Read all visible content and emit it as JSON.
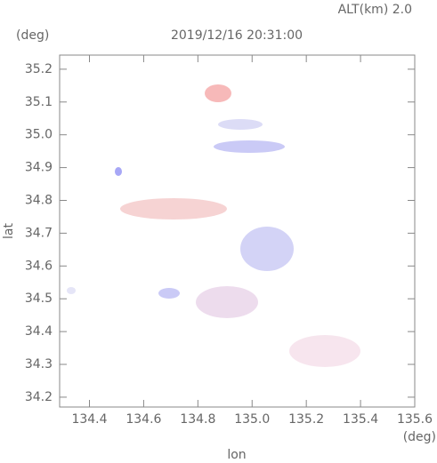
{
  "chart_data": {
    "type": "map",
    "title": "2019/12/16 20:31:00",
    "subtitle": "ALT(km) 2.0",
    "y_unit": "(deg)",
    "x_unit": "(deg)",
    "x_label": "lon",
    "y_label": "lat",
    "xlim": [
      134.29,
      135.6
    ],
    "ylim": [
      34.17,
      35.243
    ],
    "xticks": [
      134.4,
      134.6,
      134.8,
      {
        "value": 135,
        "label": "135.0"
      },
      135.2,
      135.4,
      135.6
    ],
    "yticks": [
      34.2,
      34.3,
      34.4,
      34.5,
      34.6,
      34.7,
      34.8,
      34.9,
      {
        "value": 35,
        "label": "35.0"
      },
      35.1,
      35.2
    ]
  }
}
